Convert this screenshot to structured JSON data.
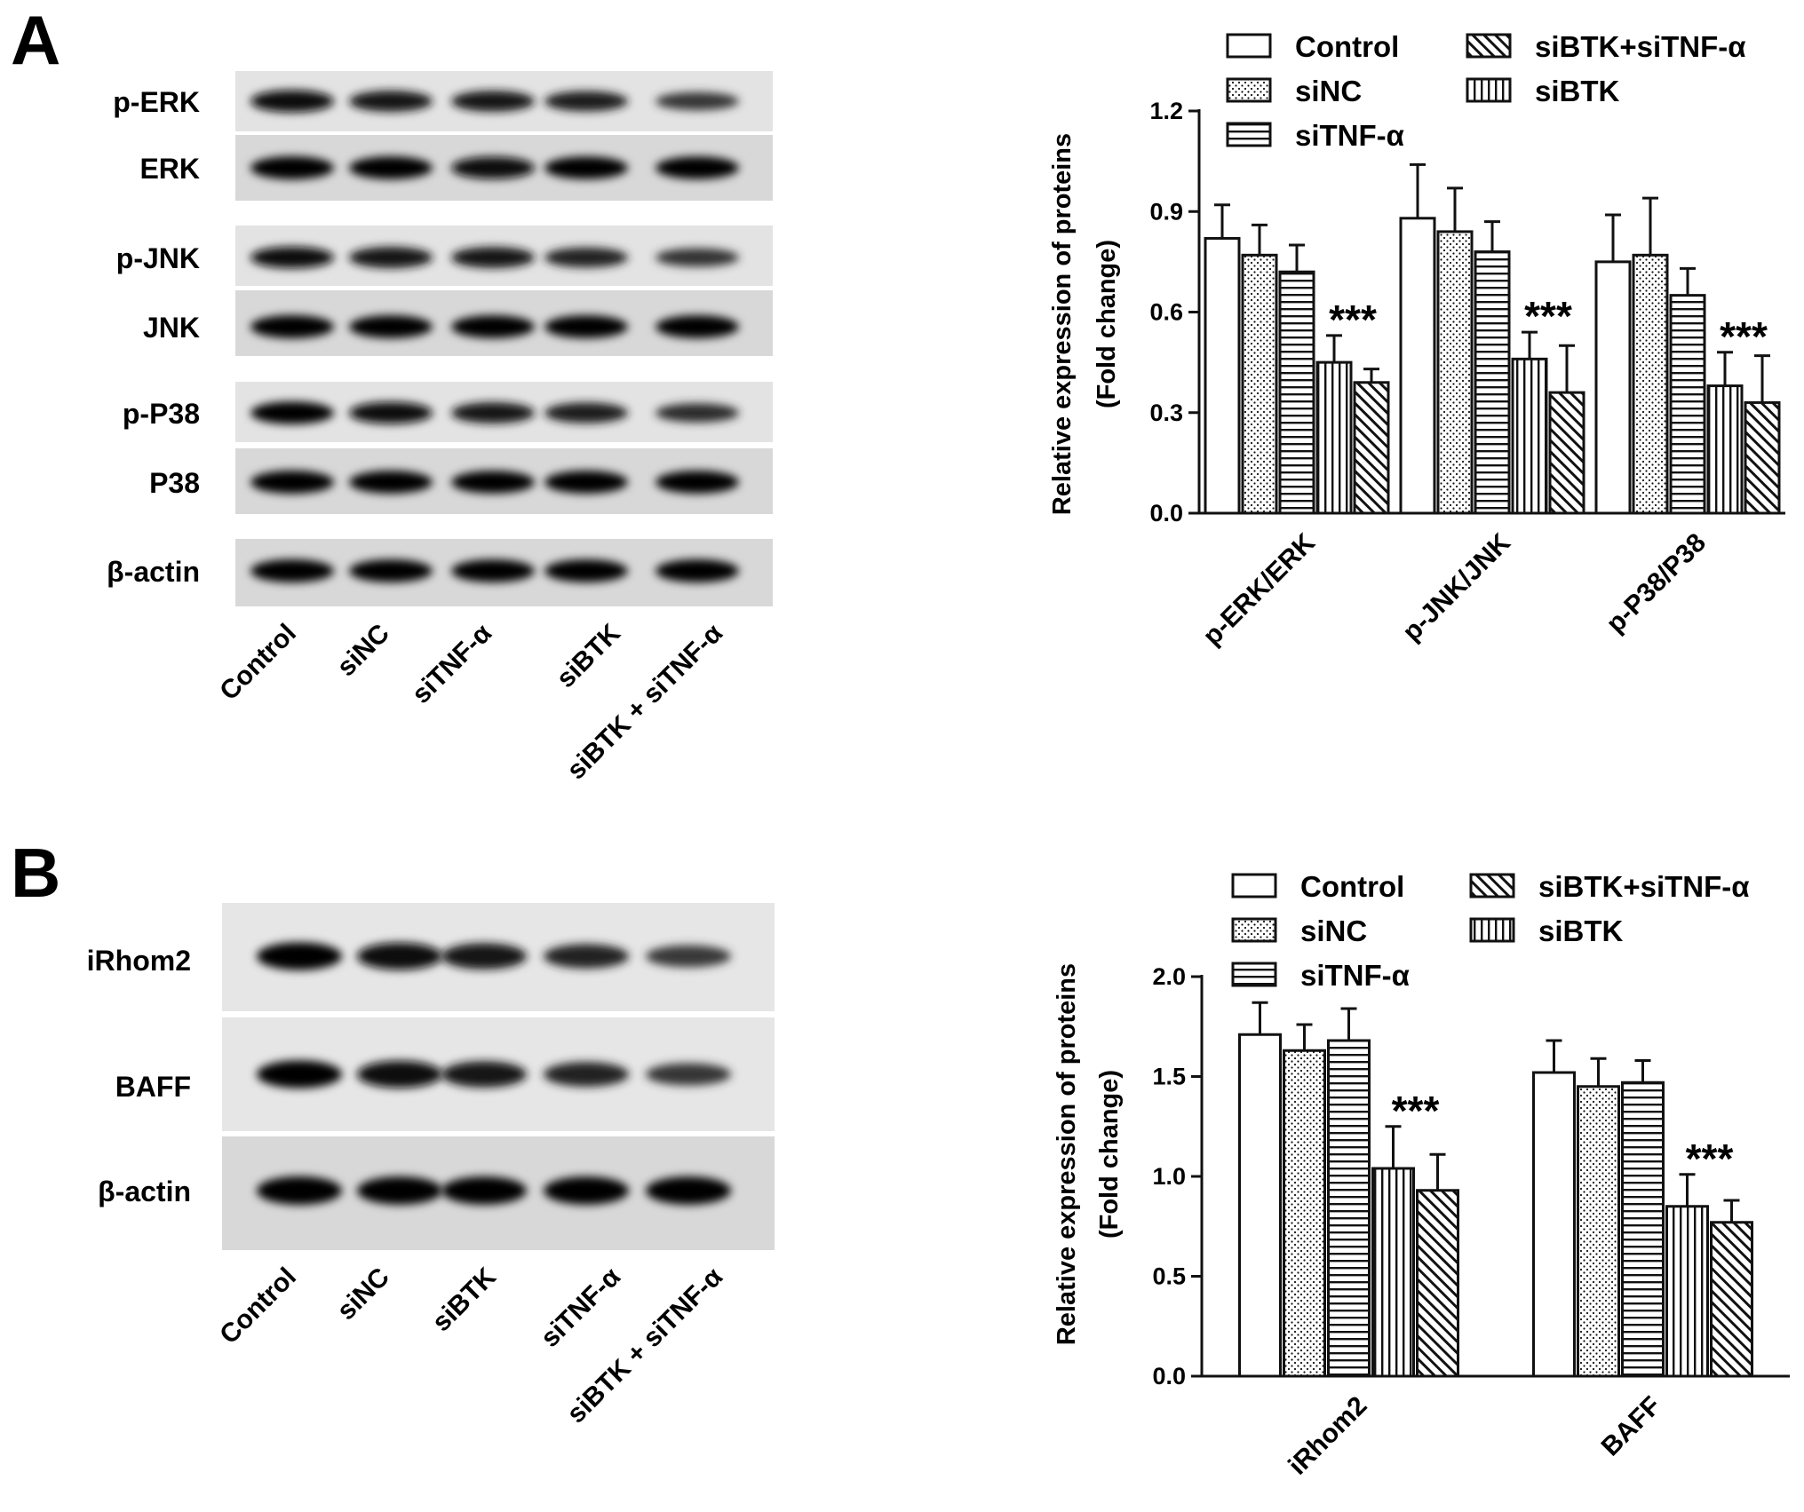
{
  "panels": [
    {
      "letter": "A",
      "blot": {
        "rows": [
          {
            "label": "p-ERK",
            "intensity": [
              0.92,
              0.8,
              0.78,
              0.72,
              0.52
            ]
          },
          {
            "label": "ERK",
            "intensity": [
              1.0,
              0.97,
              0.92,
              0.96,
              0.95
            ]
          },
          {
            "label": "p-JNK",
            "intensity": [
              0.85,
              0.82,
              0.8,
              0.7,
              0.55
            ]
          },
          {
            "label": "JNK",
            "intensity": [
              1.0,
              0.98,
              0.97,
              0.98,
              0.98
            ]
          },
          {
            "label": "p-P38",
            "intensity": [
              0.95,
              0.88,
              0.8,
              0.75,
              0.6
            ]
          },
          {
            "label": "P38",
            "intensity": [
              1.0,
              0.97,
              0.96,
              0.97,
              0.97
            ]
          },
          {
            "label": "β-actin",
            "intensity": [
              1.0,
              0.98,
              0.98,
              0.98,
              1.0
            ]
          }
        ],
        "lane_labels": [
          "Control",
          "siNC",
          "siTNF-α",
          "siBTK",
          "siBTK + siTNF-α"
        ]
      }
    },
    {
      "letter": "B",
      "blot": {
        "rows": [
          {
            "label": "iRhom2",
            "intensity": [
              0.95,
              0.9,
              0.82,
              0.68,
              0.5
            ]
          },
          {
            "label": "BAFF",
            "intensity": [
              0.95,
              0.9,
              0.82,
              0.7,
              0.52
            ]
          },
          {
            "label": "β-actin",
            "intensity": [
              1.0,
              0.98,
              0.98,
              0.98,
              0.98
            ]
          }
        ],
        "lane_labels": [
          "Control",
          "siNC",
          "siBTK",
          "siTNF-α",
          "siBTK + siTNF-α"
        ]
      }
    }
  ],
  "chart_data": [
    {
      "type": "bar",
      "panel": "A",
      "ylabel": "Relative expression of proteins",
      "ylabel2": "(Fold change)",
      "categories": [
        "p-ERK/ERK",
        "p-JNK/JNK",
        "p-P38/P38"
      ],
      "ylim": [
        0,
        1.2
      ],
      "yticks": [
        "0.0",
        "0.3",
        "0.6",
        "0.9",
        "1.2"
      ],
      "series": [
        {
          "name": "Control",
          "pattern": "open",
          "values": [
            0.82,
            0.88,
            0.75
          ],
          "errors": [
            0.1,
            0.16,
            0.14
          ]
        },
        {
          "name": "siNC",
          "pattern": "dots",
          "values": [
            0.77,
            0.84,
            0.77
          ],
          "errors": [
            0.09,
            0.13,
            0.17
          ]
        },
        {
          "name": "siTNF-α",
          "pattern": "hlines",
          "values": [
            0.72,
            0.78,
            0.65
          ],
          "errors": [
            0.08,
            0.09,
            0.08
          ]
        },
        {
          "name": "siBTK",
          "pattern": "vlines",
          "values": [
            0.45,
            0.46,
            0.38
          ],
          "errors": [
            0.08,
            0.08,
            0.1
          ]
        },
        {
          "name": "siBTK+siTNF-α",
          "pattern": "diag",
          "values": [
            0.39,
            0.36,
            0.33
          ],
          "errors": [
            0.04,
            0.14,
            0.14
          ]
        }
      ],
      "legend_order": [
        "Control",
        "siBTK+siTNF-α",
        "siNC",
        "siBTK",
        "siTNF-α"
      ],
      "annotations": [
        "***",
        "***",
        "***"
      ]
    },
    {
      "type": "bar",
      "panel": "B",
      "ylabel": "Relative expression of proteins",
      "ylabel2": "(Fold change)",
      "categories": [
        "iRhom2",
        "BAFF"
      ],
      "ylim": [
        0,
        2.0
      ],
      "yticks": [
        "0.0",
        "0.5",
        "1.0",
        "1.5",
        "2.0"
      ],
      "series": [
        {
          "name": "Control",
          "pattern": "open",
          "values": [
            1.71,
            1.52
          ],
          "errors": [
            0.16,
            0.16
          ]
        },
        {
          "name": "siNC",
          "pattern": "dots",
          "values": [
            1.63,
            1.45
          ],
          "errors": [
            0.13,
            0.14
          ]
        },
        {
          "name": "siTNF-α",
          "pattern": "hlines",
          "values": [
            1.68,
            1.47
          ],
          "errors": [
            0.16,
            0.11
          ]
        },
        {
          "name": "siBTK",
          "pattern": "vlines",
          "values": [
            1.04,
            0.85
          ],
          "errors": [
            0.21,
            0.16
          ]
        },
        {
          "name": "siBTK+siTNF-α",
          "pattern": "diag",
          "values": [
            0.93,
            0.77
          ],
          "errors": [
            0.18,
            0.11
          ]
        }
      ],
      "legend_order": [
        "Control",
        "siBTK+siTNF-α",
        "siNC",
        "siBTK",
        "siTNF-α"
      ],
      "annotations": [
        "***",
        "***"
      ]
    }
  ]
}
